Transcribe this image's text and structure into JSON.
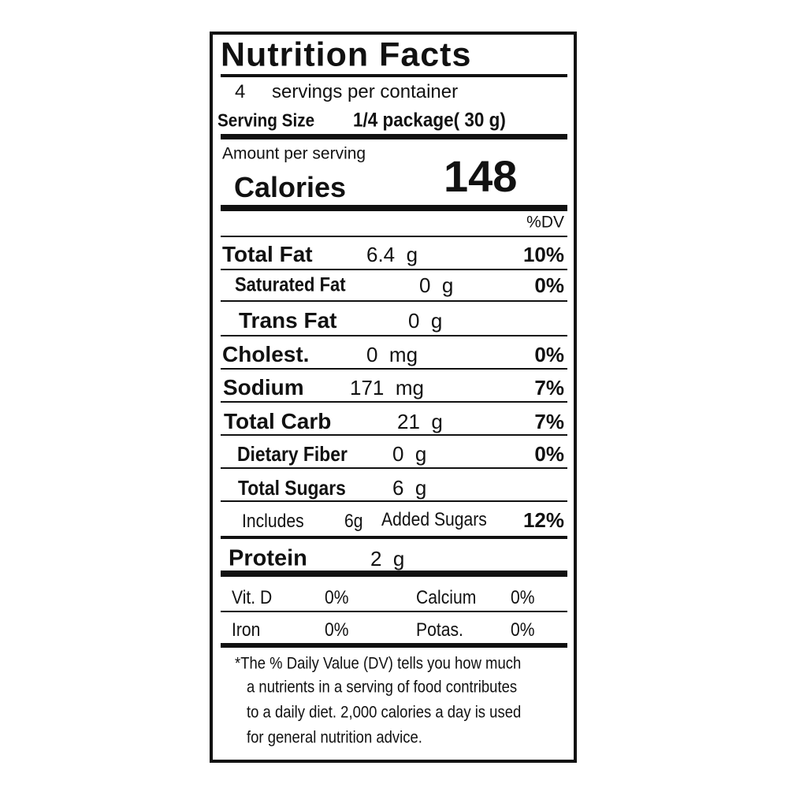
{
  "title": "Nutrition Facts",
  "servings": {
    "count": 4,
    "text": "servings per container"
  },
  "serving_size": {
    "label": "Serving Size",
    "value": "1/4 package( 30 g)"
  },
  "amount_per_serving": "Amount per serving",
  "calories": {
    "label": "Calories",
    "value": 148
  },
  "dv_header": "%DV",
  "nutrients": [
    {
      "name": "Total Fat",
      "amount": "6.4  g",
      "dv": "10%"
    },
    {
      "name": "Saturated Fat",
      "amount": "0  g",
      "dv": "0%"
    },
    {
      "name": "Trans Fat",
      "amount": "0  g"
    },
    {
      "name": "Cholest.",
      "amount": "0  mg",
      "dv": "0%"
    },
    {
      "name": "Sodium",
      "amount": "171  mg",
      "dv": "7%"
    },
    {
      "name": "Total Carb",
      "amount": "21  g",
      "dv": "7%"
    },
    {
      "name": "Dietary Fiber",
      "amount": "0  g",
      "dv": "0%"
    },
    {
      "name": "Total Sugars",
      "amount": "6  g"
    }
  ],
  "added_sugars": {
    "prefix": "Includes",
    "amount": "6g",
    "name": "Added Sugars",
    "dv": "12%"
  },
  "protein": {
    "name": "Protein",
    "amount": "2  g"
  },
  "vitamins": [
    [
      "Vit. D",
      "0%",
      "Calcium",
      "0%"
    ],
    [
      "Iron",
      "0%",
      "Potas.",
      "0%"
    ]
  ],
  "footnote": [
    "*The % Daily Value (DV) tells you how much",
    "a nutrients in a serving of food contributes",
    "to a daily diet. 2,000 calories a day is used",
    "for general nutrition advice."
  ]
}
